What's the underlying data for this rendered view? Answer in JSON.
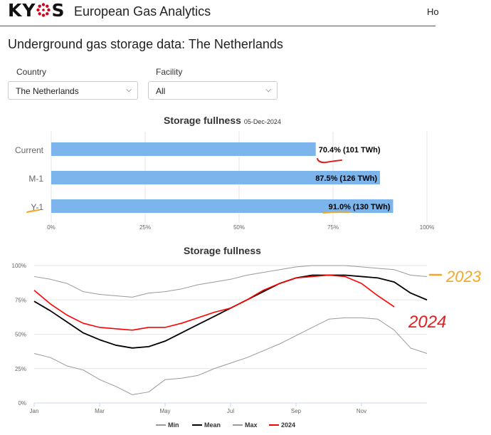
{
  "header": {
    "brand": "European Gas Analytics",
    "nav_partial": "Ho"
  },
  "page": {
    "title": "Underground gas storage data: The Netherlands"
  },
  "filters": {
    "country_label": "Country",
    "country_value": "The Netherlands",
    "facility_label": "Facility",
    "facility_value": "All"
  },
  "colors": {
    "bar": "#7cb5ec",
    "min": "#999999",
    "mean": "#000000",
    "max": "#999999",
    "y2024": "#ff0000",
    "annotation_red": "#e02020",
    "annotation_orange": "#f5a623"
  },
  "annotations": {
    "label_2023": "2023",
    "label_2024": "2024"
  },
  "chart_data": [
    {
      "type": "bar",
      "title": "Storage fullness",
      "subtitle": "05-Dec-2024",
      "categories": [
        "Current",
        "M-1",
        "Y-1"
      ],
      "values": [
        70.4,
        87.5,
        91.0
      ],
      "data_labels": [
        "70.4% (101 TWh)",
        "87.5% (126 TWh)",
        "91.0% (130 TWh)"
      ],
      "xlim": [
        0,
        100
      ],
      "x_ticks": [
        "0%",
        "25%",
        "50%",
        "75%",
        "100%"
      ],
      "color": "#7cb5ec"
    },
    {
      "type": "line",
      "title": "Storage fullness",
      "x_ticks": [
        "Jan",
        "Mar",
        "May",
        "Jul",
        "Sep",
        "Nov"
      ],
      "y_ticks": [
        "0%",
        "25%",
        "50%",
        "75%",
        "100%"
      ],
      "ylim": [
        0,
        100
      ],
      "x_months": [
        0,
        0.5,
        1,
        1.5,
        2,
        2.5,
        3,
        3.5,
        4,
        4.5,
        5,
        5.5,
        6,
        6.5,
        7,
        7.5,
        8,
        8.5,
        9,
        9.5,
        10,
        10.5,
        11,
        11.5,
        12
      ],
      "series": [
        {
          "name": "Min",
          "color": "#999999",
          "values": [
            36,
            33,
            27,
            24,
            17,
            12,
            6,
            8,
            17,
            18,
            20,
            25,
            29,
            33,
            38,
            43,
            49,
            55,
            61,
            62,
            62,
            61,
            53,
            40,
            36
          ]
        },
        {
          "name": "Mean",
          "color": "#000000",
          "values": [
            74,
            67,
            59,
            51,
            46,
            42,
            40,
            41,
            45,
            51,
            57,
            63,
            69,
            75,
            81,
            87,
            91,
            93,
            93,
            93,
            92,
            91,
            88,
            80,
            75
          ]
        },
        {
          "name": "Max",
          "color": "#999999",
          "values": [
            92,
            90,
            87,
            81,
            79,
            78,
            77,
            80,
            81,
            83,
            86,
            88,
            90,
            93,
            95,
            97,
            99,
            100,
            100,
            100,
            99,
            98,
            97,
            93,
            92
          ]
        },
        {
          "name": "2024",
          "color": "#ff0000",
          "values": [
            82,
            72,
            64,
            58,
            55,
            54,
            53,
            55,
            55,
            58,
            62,
            66,
            69,
            75,
            82,
            87,
            91,
            92,
            93,
            92,
            87,
            78,
            70
          ]
        }
      ]
    }
  ]
}
